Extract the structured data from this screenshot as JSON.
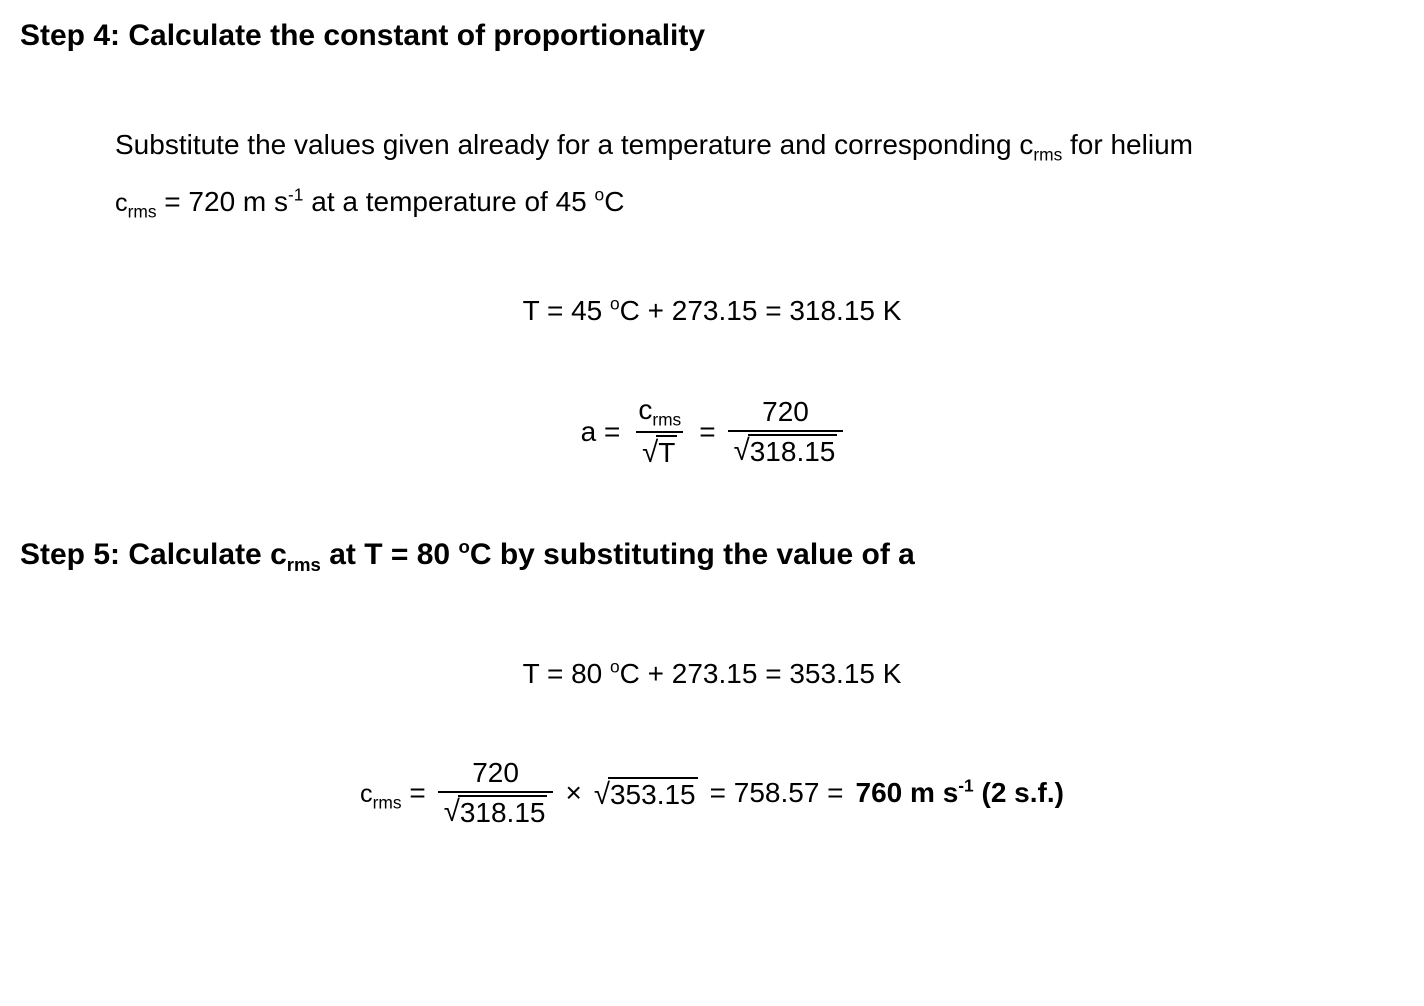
{
  "step4": {
    "heading": "Step 4: Calculate the constant of proportionality",
    "subtext_a": "Substitute the values given already for a temperature and corresponding c",
    "subtext_b": " for helium",
    "given_prefix": "c",
    "given_rest": " = 720 m s",
    "given_tail": " at a temperature of 45 ",
    "given_unit_tail": "C",
    "eq1": "T = 45 ",
    "eq1_mid": "C + 273.15 = 318.15 K",
    "eq2_lhs": "a = ",
    "eq2_num1": "c",
    "eq2_den1": "T",
    "eq2_mid": " = ",
    "eq2_num2": "720",
    "eq2_den2": "318.15"
  },
  "step5": {
    "heading_a": "Step 5: Calculate c",
    "heading_b": " at T = 80 ",
    "heading_c": "C by substituting the value of a",
    "eq1": "T = 80 ",
    "eq1_mid": "C + 273.15 = 353.15 K",
    "final_lhs": "c",
    "final_eq": " = ",
    "final_num": "720",
    "final_den": "318.15",
    "final_mul": " × ",
    "final_sqrt": "353.15",
    "final_res": " = 758.57 = ",
    "final_bold": "760 m s",
    "final_bold_tail": " (2 s.f.)"
  },
  "sub_rms": "rms",
  "sup_neg1": "-1",
  "sup_deg": "o"
}
